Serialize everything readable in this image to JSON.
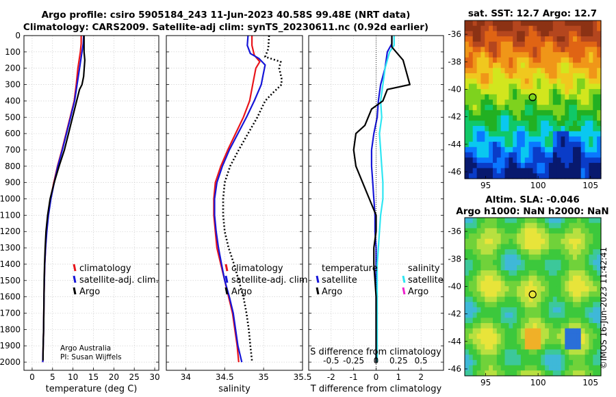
{
  "header": {
    "line1": "Argo profile: csiro 5905184_243 11-Jun-2023 40.58S 99.48E (NRT data)",
    "line2": "Climatology: CARS2009. Satellite-adj clim: synTS_20230611.nc (0.92d earlier)"
  },
  "colors": {
    "climatology": "#e8141a",
    "satellite": "#1515d8",
    "argo": "#000000",
    "sat_cyan": "#2ee6f2",
    "argo_magenta": "#ee22cc"
  },
  "side_text": "©IMOS 16-Jun-2023 11:42:41",
  "chart_data": [
    {
      "type": "line",
      "name": "temperature",
      "xlabel": "temperature (deg C)",
      "xlim": [
        -2,
        31
      ],
      "ylim": [
        0,
        2050
      ],
      "xticks": [
        0,
        5,
        10,
        15,
        20,
        25,
        30
      ],
      "yticks": [
        0,
        100,
        200,
        300,
        400,
        500,
        600,
        700,
        800,
        900,
        1000,
        1100,
        1200,
        1300,
        1400,
        1500,
        1600,
        1700,
        1800,
        1900,
        2000
      ],
      "legend": [
        "climatology",
        "satellite-adj. clim.",
        "Argo"
      ],
      "credit": [
        "Argo Australia",
        "PI: Susan Wijffels"
      ],
      "series": [
        {
          "name": "climatology",
          "color": "#e8141a",
          "points": [
            [
              12,
              0
            ],
            [
              12,
              50
            ],
            [
              11.8,
              100
            ],
            [
              11.2,
              200
            ],
            [
              10.8,
              300
            ],
            [
              10.3,
              400
            ],
            [
              9.3,
              500
            ],
            [
              8.3,
              600
            ],
            [
              7.3,
              700
            ],
            [
              6.2,
              800
            ],
            [
              5.3,
              900
            ],
            [
              4.5,
              1000
            ],
            [
              3.9,
              1100
            ],
            [
              3.5,
              1200
            ],
            [
              3.3,
              1300
            ],
            [
              3.1,
              1400
            ],
            [
              3,
              1500
            ],
            [
              2.9,
              1600
            ],
            [
              2.85,
              1700
            ],
            [
              2.8,
              1800
            ],
            [
              2.7,
              1900
            ],
            [
              2.6,
              2000
            ]
          ]
        },
        {
          "name": "satellite-adj. clim.",
          "color": "#1515d8",
          "points": [
            [
              12.6,
              0
            ],
            [
              12.5,
              50
            ],
            [
              12.2,
              100
            ],
            [
              11.6,
              200
            ],
            [
              11,
              300
            ],
            [
              10.4,
              400
            ],
            [
              9.4,
              500
            ],
            [
              8.4,
              600
            ],
            [
              7.4,
              700
            ],
            [
              6.3,
              800
            ],
            [
              5.4,
              900
            ],
            [
              4.6,
              1000
            ],
            [
              4,
              1100
            ],
            [
              3.6,
              1200
            ],
            [
              3.3,
              1300
            ],
            [
              3.1,
              1400
            ],
            [
              3,
              1500
            ],
            [
              2.9,
              1600
            ],
            [
              2.85,
              1700
            ],
            [
              2.8,
              1800
            ],
            [
              2.7,
              1900
            ],
            [
              2.6,
              2000
            ]
          ]
        },
        {
          "name": "Argo",
          "color": "#000000",
          "points": [
            [
              12.7,
              0
            ],
            [
              12.7,
              100
            ],
            [
              12.9,
              150
            ],
            [
              12.6,
              250
            ],
            [
              12.2,
              300
            ],
            [
              11.6,
              330
            ],
            [
              10.9,
              400
            ],
            [
              9.9,
              500
            ],
            [
              8.9,
              600
            ],
            [
              7.9,
              700
            ],
            [
              6.6,
              800
            ],
            [
              5.4,
              900
            ],
            [
              4.4,
              1000
            ],
            [
              3.8,
              1100
            ],
            [
              3.4,
              1200
            ],
            [
              3.2,
              1300
            ],
            [
              3.05,
              1400
            ],
            [
              2.95,
              1500
            ],
            [
              2.9,
              1600
            ],
            [
              2.85,
              1700
            ],
            [
              2.8,
              1800
            ],
            [
              2.7,
              1900
            ],
            [
              2.65,
              1990
            ]
          ]
        }
      ]
    },
    {
      "type": "line",
      "name": "salinity",
      "xlabel": "salinity",
      "xlim": [
        33.75,
        35.5
      ],
      "ylim": [
        0,
        2050
      ],
      "xticks": [
        34,
        34.5,
        35,
        35.5
      ],
      "legend": [
        "climatology",
        "satellite-adj. clim.",
        "Argo"
      ],
      "series": [
        {
          "name": "climatology",
          "color": "#e8141a",
          "points": [
            [
              34.85,
              0
            ],
            [
              34.85,
              60
            ],
            [
              34.88,
              120
            ],
            [
              34.95,
              160
            ],
            [
              34.9,
              200
            ],
            [
              34.86,
              300
            ],
            [
              34.82,
              400
            ],
            [
              34.74,
              500
            ],
            [
              34.64,
              600
            ],
            [
              34.54,
              700
            ],
            [
              34.45,
              800
            ],
            [
              34.38,
              900
            ],
            [
              34.36,
              1000
            ],
            [
              34.36,
              1100
            ],
            [
              34.38,
              1200
            ],
            [
              34.4,
              1300
            ],
            [
              34.45,
              1400
            ],
            [
              34.5,
              1500
            ],
            [
              34.55,
              1600
            ],
            [
              34.6,
              1700
            ],
            [
              34.63,
              1800
            ],
            [
              34.66,
              1900
            ],
            [
              34.68,
              2000
            ]
          ]
        },
        {
          "name": "satellite-adj. clim.",
          "color": "#1515d8",
          "points": [
            [
              34.8,
              0
            ],
            [
              34.79,
              60
            ],
            [
              34.83,
              110
            ],
            [
              34.94,
              140
            ],
            [
              35.02,
              180
            ],
            [
              34.99,
              250
            ],
            [
              34.97,
              300
            ],
            [
              34.88,
              400
            ],
            [
              34.78,
              500
            ],
            [
              34.67,
              600
            ],
            [
              34.56,
              700
            ],
            [
              34.47,
              800
            ],
            [
              34.4,
              900
            ],
            [
              34.37,
              1000
            ],
            [
              34.37,
              1100
            ],
            [
              34.39,
              1200
            ],
            [
              34.42,
              1300
            ],
            [
              34.46,
              1400
            ],
            [
              34.5,
              1500
            ],
            [
              34.56,
              1600
            ],
            [
              34.61,
              1700
            ],
            [
              34.64,
              1800
            ],
            [
              34.67,
              1900
            ],
            [
              34.72,
              2000
            ]
          ]
        },
        {
          "name": "Argo",
          "color": "#000000",
          "points": [
            [
              35.07,
              0
            ],
            [
              35.06,
              80
            ],
            [
              35.02,
              130
            ],
            [
              35.22,
              160
            ],
            [
              35.2,
              200
            ],
            [
              35.23,
              260
            ],
            [
              35.23,
              300
            ],
            [
              35.12,
              350
            ],
            [
              35.02,
              400
            ],
            [
              34.92,
              500
            ],
            [
              34.8,
              600
            ],
            [
              34.68,
              700
            ],
            [
              34.57,
              800
            ],
            [
              34.5,
              900
            ],
            [
              34.48,
              1000
            ],
            [
              34.48,
              1100
            ],
            [
              34.5,
              1200
            ],
            [
              34.55,
              1300
            ],
            [
              34.62,
              1400
            ],
            [
              34.68,
              1500
            ],
            [
              34.74,
              1600
            ],
            [
              34.78,
              1700
            ],
            [
              34.81,
              1800
            ],
            [
              34.83,
              1900
            ],
            [
              34.85,
              1990
            ]
          ]
        }
      ]
    },
    {
      "type": "line",
      "name": "differences",
      "xlabel": "T difference from climatology",
      "xlabel_top": "S difference from climatology",
      "xlim": [
        -3,
        3
      ],
      "ylim": [
        0,
        2050
      ],
      "xticks": [
        -2,
        -1,
        0,
        1,
        2
      ],
      "xticks_s": [
        "-0.5",
        "-0.25",
        "0",
        "0.25",
        "0.5"
      ],
      "legend_t_title": "temperature",
      "legend_s_title": "salinity",
      "legend_t": [
        "satellite",
        "Argo"
      ],
      "legend_s": [
        "satellite",
        "Argo"
      ],
      "series": [
        {
          "name": "T satellite",
          "color": "#1515d8",
          "points": [
            [
              0.7,
              0
            ],
            [
              0.7,
              50
            ],
            [
              0.5,
              100
            ],
            [
              0.4,
              200
            ],
            [
              0.2,
              300
            ],
            [
              0.1,
              400
            ],
            [
              0.05,
              500
            ],
            [
              -0.1,
              600
            ],
            [
              -0.2,
              700
            ],
            [
              -0.2,
              800
            ],
            [
              -0.15,
              900
            ],
            [
              -0.1,
              1000
            ],
            [
              -0.05,
              1100
            ],
            [
              -0.05,
              1200
            ],
            [
              0,
              1300
            ],
            [
              0,
              1400
            ],
            [
              0,
              1500
            ],
            [
              0,
              1600
            ],
            [
              0,
              1700
            ],
            [
              0,
              1800
            ],
            [
              0,
              1900
            ],
            [
              0,
              2000
            ]
          ]
        },
        {
          "name": "S satellite",
          "color": "#2ee6f2",
          "points": [
            [
              0.8,
              0
            ],
            [
              0.8,
              60
            ],
            [
              0.6,
              100
            ],
            [
              0.4,
              200
            ],
            [
              0.3,
              300
            ],
            [
              0.2,
              400
            ],
            [
              0.25,
              500
            ],
            [
              0.15,
              600
            ],
            [
              0.2,
              700
            ],
            [
              0.25,
              800
            ],
            [
              0.3,
              900
            ],
            [
              0.3,
              1000
            ],
            [
              0.2,
              1100
            ],
            [
              0.15,
              1200
            ],
            [
              0.1,
              1300
            ],
            [
              0.05,
              1400
            ],
            [
              0.05,
              1500
            ],
            [
              0.05,
              1600
            ],
            [
              0.05,
              1700
            ],
            [
              0.05,
              1800
            ],
            [
              0.05,
              1900
            ],
            [
              0.05,
              2000
            ]
          ]
        },
        {
          "name": "T Argo",
          "color": "#000000",
          "points": [
            [
              0.7,
              0
            ],
            [
              0.7,
              70
            ],
            [
              1.2,
              150
            ],
            [
              1.3,
              200
            ],
            [
              1.5,
              300
            ],
            [
              0.5,
              330
            ],
            [
              0.3,
              400
            ],
            [
              -0.2,
              450
            ],
            [
              -0.5,
              550
            ],
            [
              -0.9,
              600
            ],
            [
              -1,
              700
            ],
            [
              -0.9,
              800
            ],
            [
              -0.6,
              900
            ],
            [
              -0.3,
              1000
            ],
            [
              0,
              1100
            ],
            [
              0,
              1200
            ],
            [
              -0.1,
              1300
            ],
            [
              -0.1,
              1400
            ],
            [
              -0.05,
              1500
            ],
            [
              0,
              1600
            ],
            [
              0,
              1700
            ],
            [
              0,
              1800
            ],
            [
              0,
              1900
            ],
            [
              0,
              2000
            ]
          ]
        }
      ]
    },
    {
      "type": "heatmap",
      "name": "sst_map",
      "title": "sat. SST: 12.7 Argo: 12.7",
      "xlim": [
        93,
        106
      ],
      "ylim": [
        -46.5,
        -35
      ],
      "xticks": [
        95,
        100,
        105
      ],
      "yticks": [
        -36,
        -38,
        -40,
        -42,
        -44,
        -46
      ],
      "marker": [
        99.48,
        -40.58
      ]
    },
    {
      "type": "heatmap",
      "name": "sla_map",
      "title1": "Altim. SLA: -0.046",
      "title2": "Argo h1000: NaN h2000: NaN",
      "xlim": [
        93,
        106
      ],
      "ylim": [
        -46.5,
        -35
      ],
      "xticks": [
        95,
        100,
        105
      ],
      "yticks": [
        -36,
        -38,
        -40,
        -42,
        -44,
        -46
      ],
      "marker": [
        99.48,
        -40.58
      ]
    }
  ]
}
